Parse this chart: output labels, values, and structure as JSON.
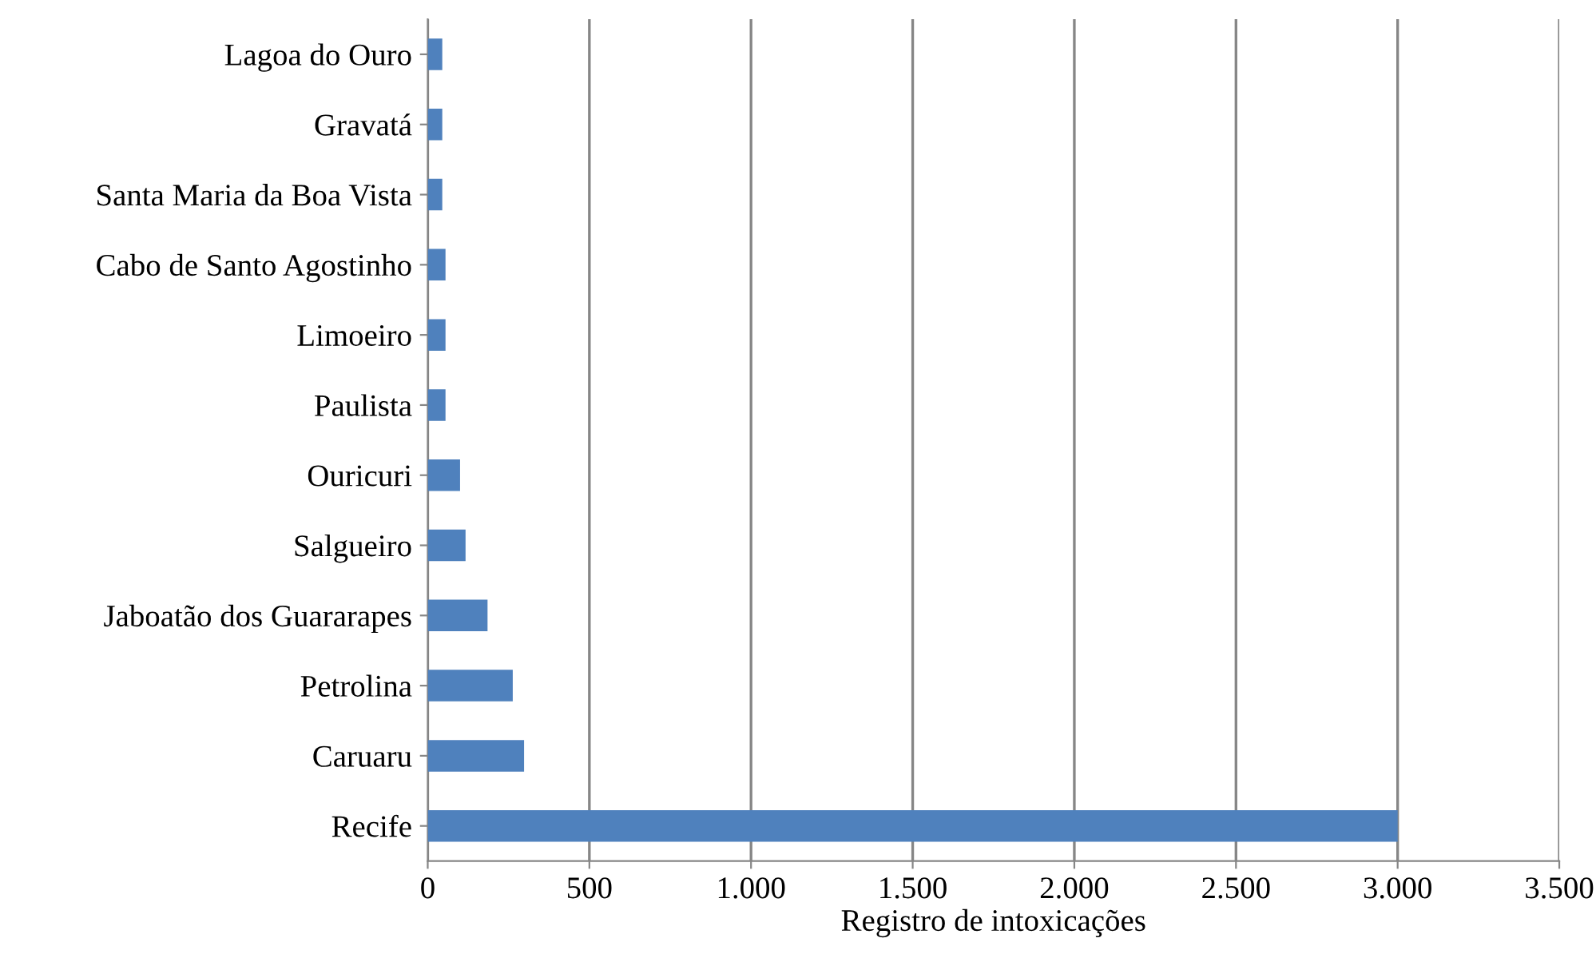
{
  "chart_data": {
    "type": "bar",
    "orientation": "horizontal",
    "xlabel": "Registro de intoxicações",
    "categories": [
      "Lagoa do Ouro",
      "Gravatá",
      "Santa Maria da Boa Vista",
      "Cabo de Santo Agostinho",
      "Limoeiro",
      "Paulista",
      "Ouricuri",
      "Salgueiro",
      "Jaboatão dos Guararapes",
      "Petrolina",
      "Caruaru",
      "Recife"
    ],
    "values": [
      45,
      45,
      45,
      55,
      55,
      55,
      100,
      117,
      185,
      263,
      298,
      3000
    ],
    "color": "#4f81bd",
    "xlim": [
      0,
      3500
    ],
    "xticks": [
      0,
      500,
      {
        "value": 1000,
        "label": "1.000"
      },
      {
        "value": 1500,
        "label": "1.500"
      },
      {
        "value": 2000,
        "label": "2.000"
      },
      {
        "value": 2500,
        "label": "2.500"
      },
      {
        "value": 3000,
        "label": "3.000"
      },
      {
        "value": 3500,
        "label": "3.500"
      }
    ],
    "grid": "x"
  }
}
